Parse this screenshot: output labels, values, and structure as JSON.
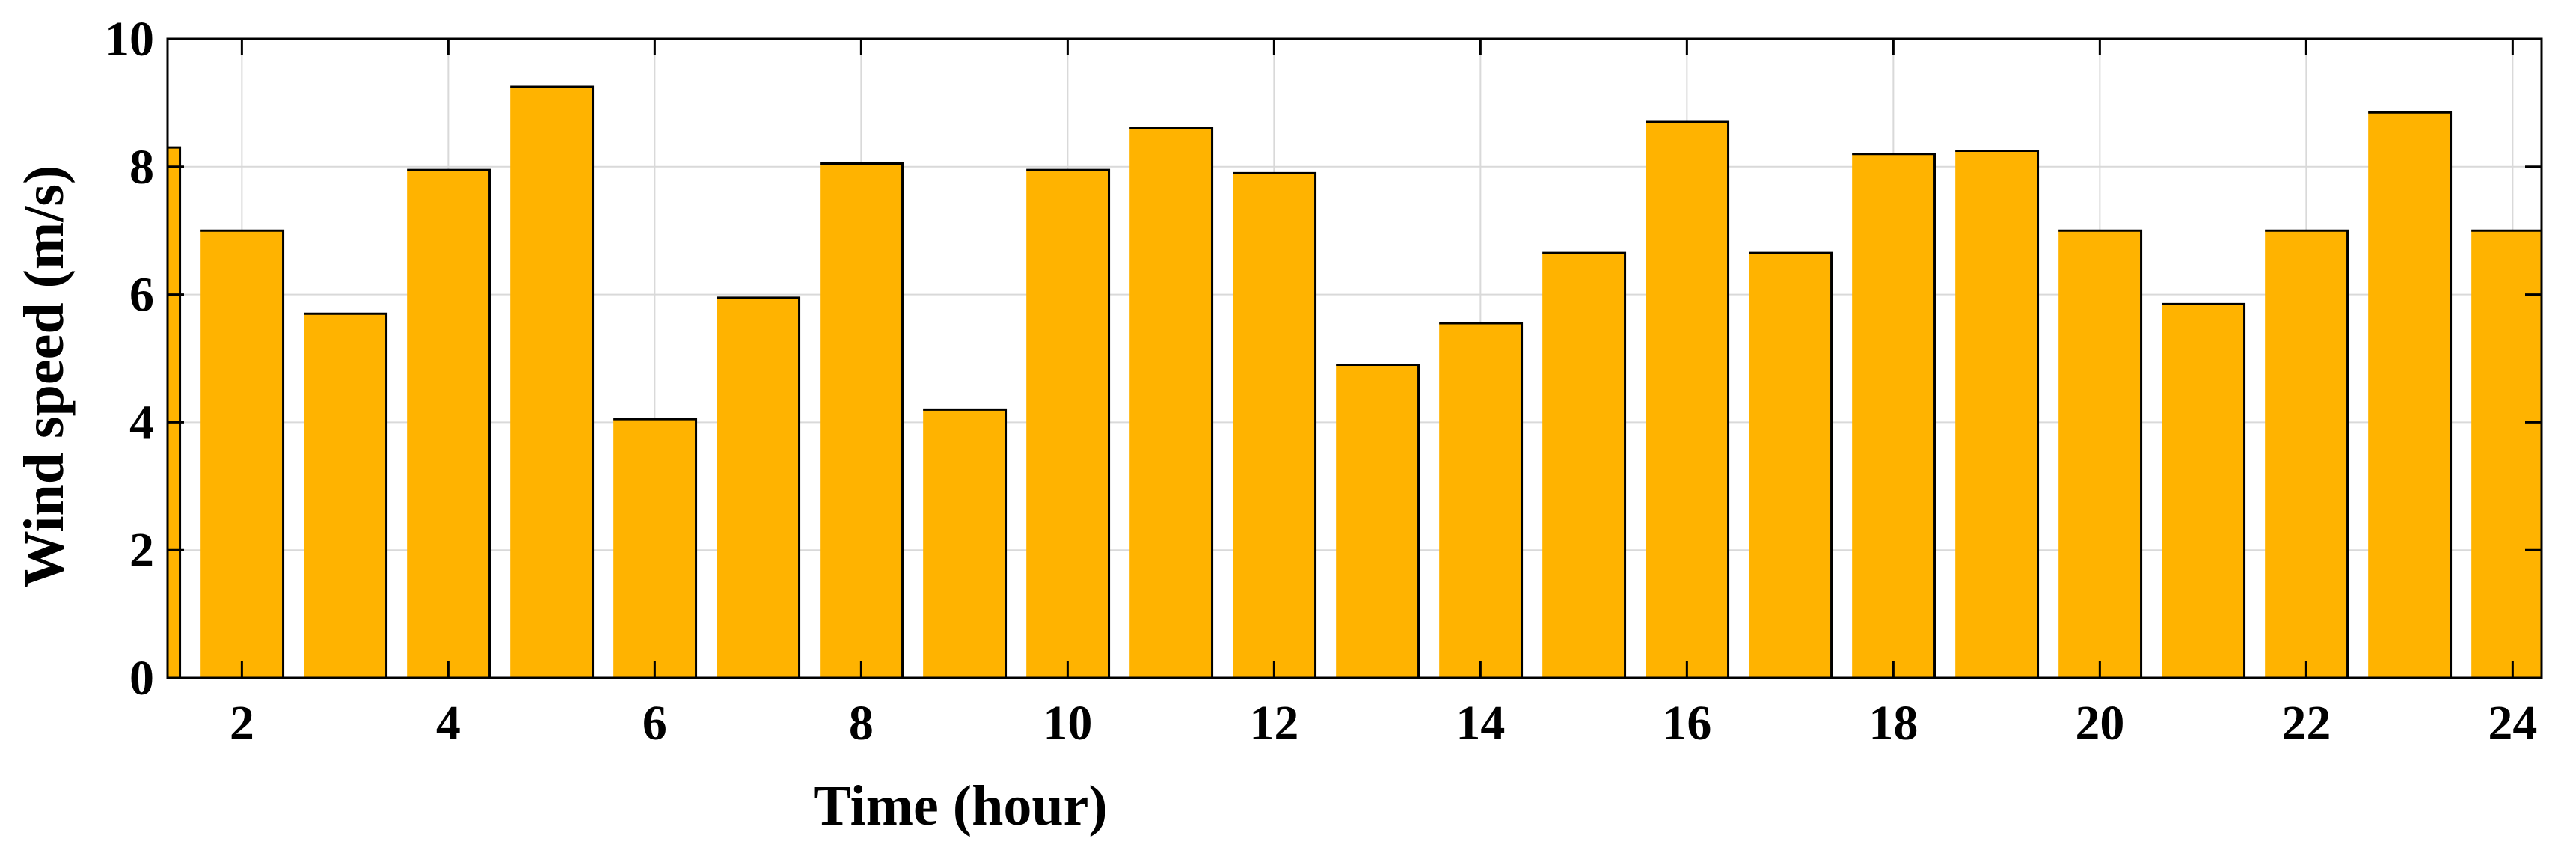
{
  "chart_data": {
    "type": "bar",
    "xlabel": "Time (hour)",
    "ylabel": "Wind speed (m/s)",
    "categories": [
      1,
      2,
      3,
      4,
      5,
      6,
      7,
      8,
      9,
      10,
      11,
      12,
      13,
      14,
      15,
      16,
      17,
      18,
      19,
      20,
      21,
      22,
      23,
      24
    ],
    "x_tick_labels": [
      "2",
      "4",
      "6",
      "8",
      "10",
      "12",
      "14",
      "16",
      "18",
      "20",
      "22",
      "24"
    ],
    "x_tick_values": [
      2,
      4,
      6,
      8,
      10,
      12,
      14,
      16,
      18,
      20,
      22,
      24
    ],
    "y_tick_labels": [
      "0",
      "2",
      "4",
      "6",
      "8",
      "10"
    ],
    "y_tick_values": [
      0,
      2,
      4,
      6,
      8,
      10
    ],
    "values": [
      8.3,
      7.0,
      5.7,
      7.95,
      9.25,
      4.05,
      5.95,
      8.05,
      4.2,
      7.95,
      8.6,
      7.9,
      4.9,
      5.55,
      6.65,
      8.7,
      6.65,
      8.2,
      8.25,
      7.0,
      5.85,
      7.0,
      8.85,
      7.0
    ],
    "xlim": [
      1.28,
      24.28
    ],
    "ylim": [
      0,
      10
    ],
    "grid": true,
    "bar_color": "#FFB300",
    "edge_color": "#000000"
  }
}
